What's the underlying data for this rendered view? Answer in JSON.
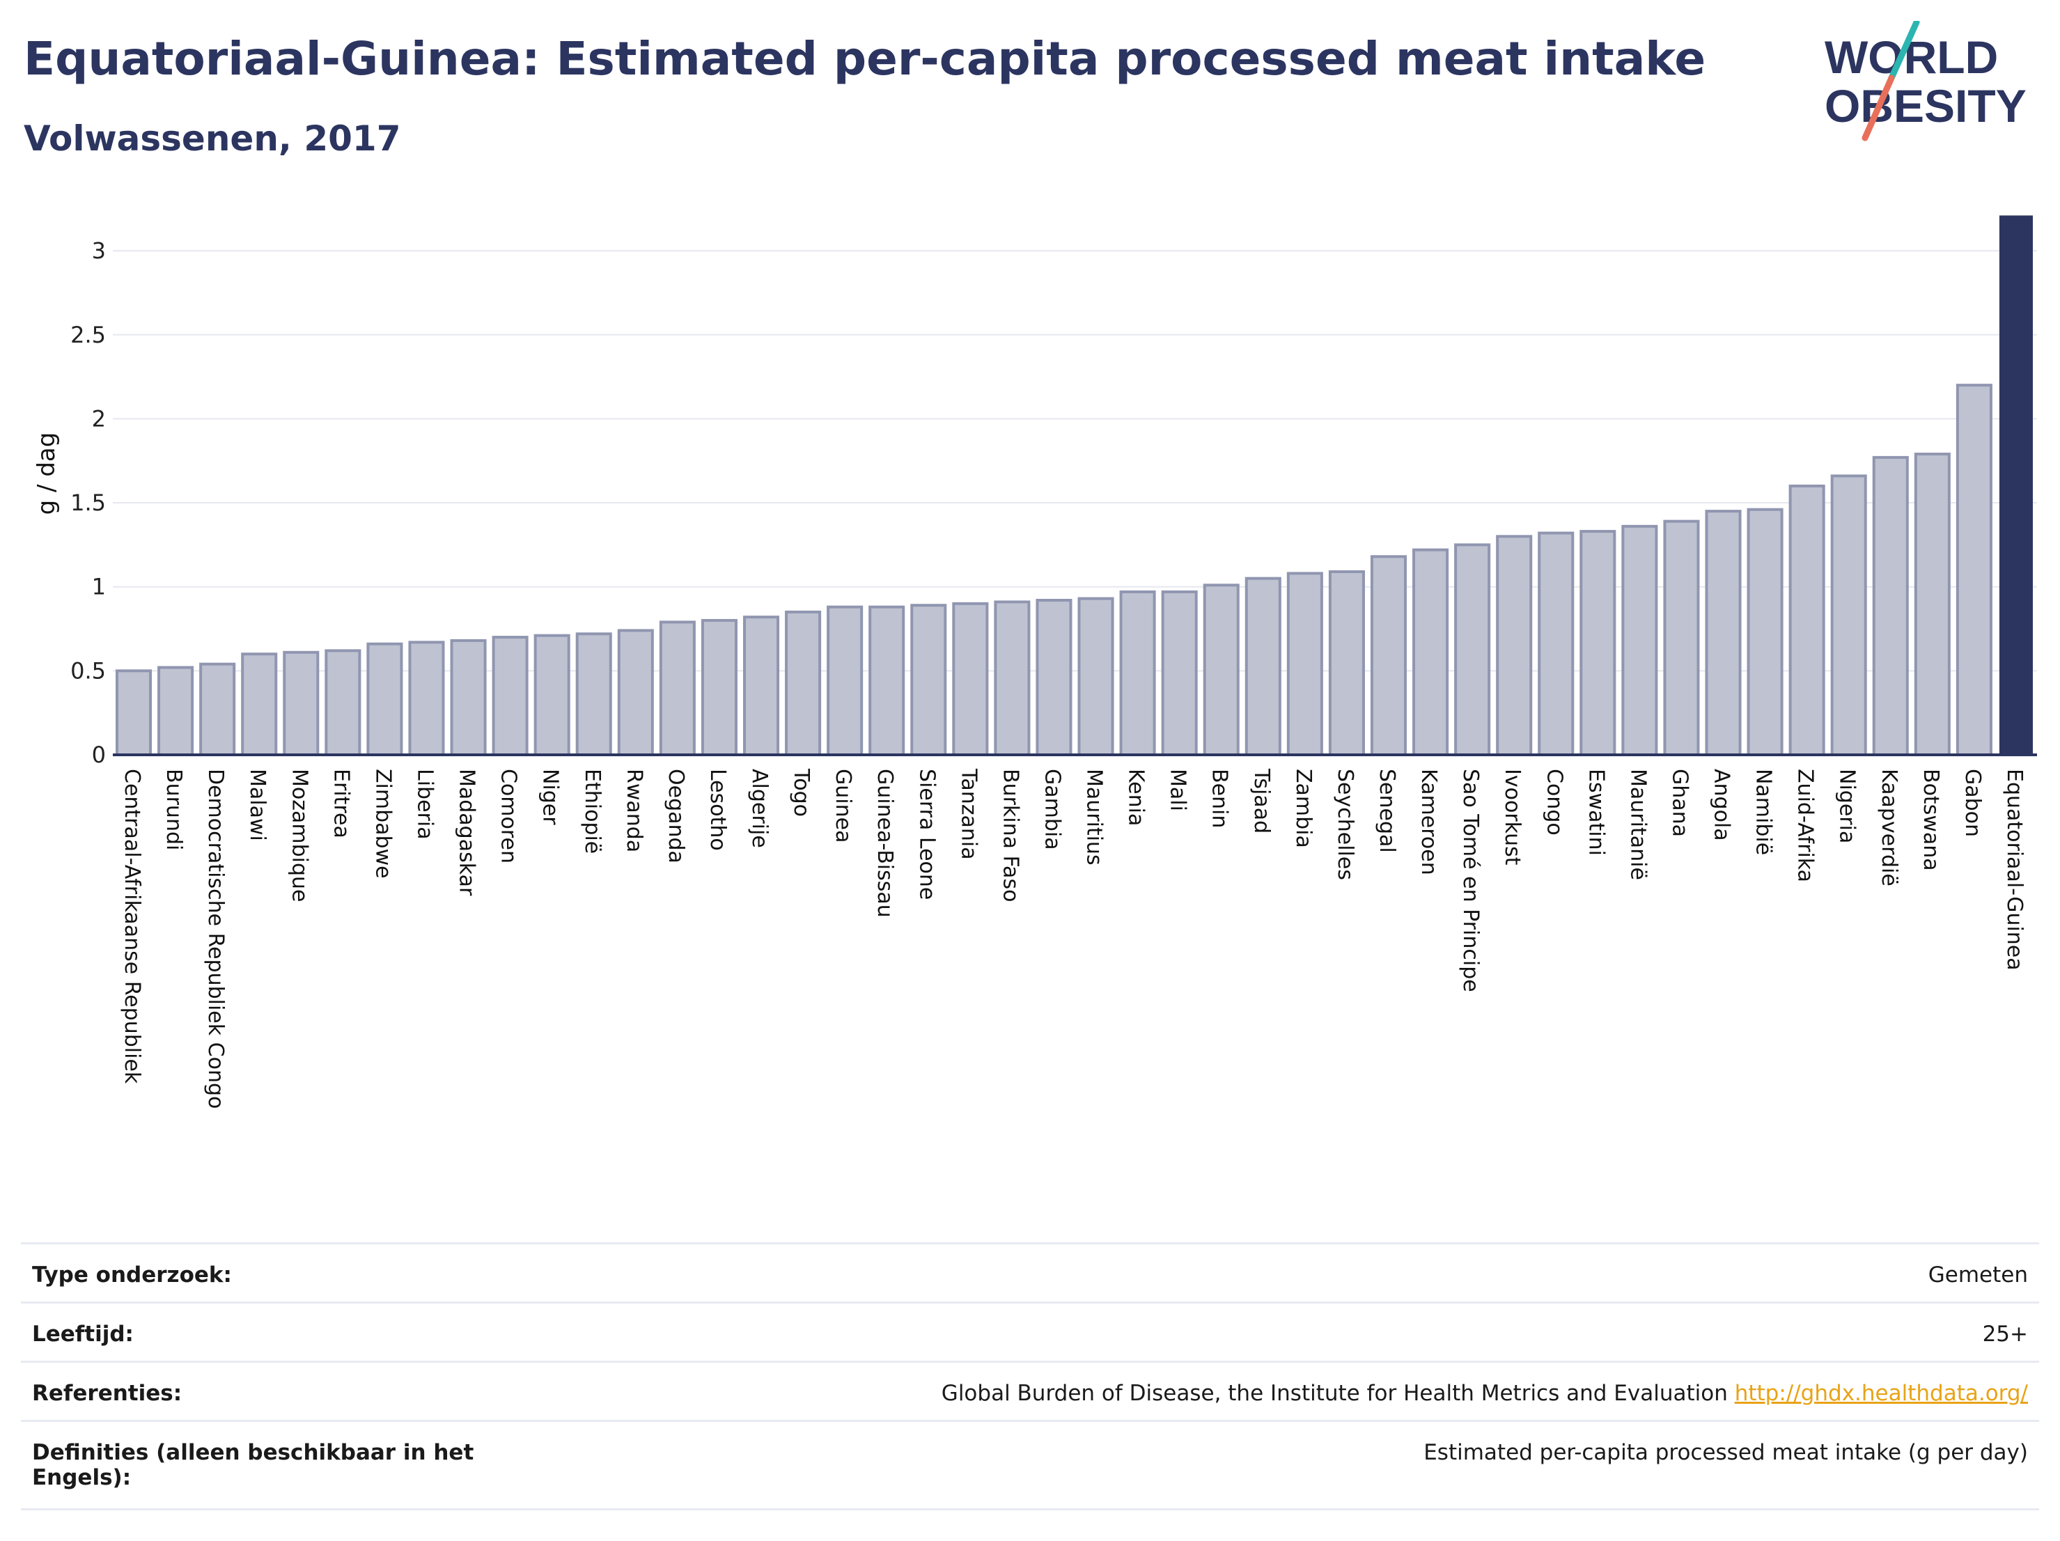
{
  "header": {
    "title": "Equatoriaal-Guinea: Estimated per-capita processed meat intake",
    "subtitle": "Volwassenen, 2017"
  },
  "logo": {
    "line1": "WORLD",
    "line2": "OBESITY",
    "text_color": "#2c3560",
    "slash_colors": [
      "#2bb5b0",
      "#e8705a"
    ]
  },
  "colors": {
    "bar_fill": "#bfc3d1",
    "bar_stroke": "#9096b0",
    "highlight": "#2c3560",
    "grid": "#e6e8ef",
    "text": "#2c3560",
    "link": "#e8a317"
  },
  "chart_data": {
    "type": "bar",
    "title": "",
    "xlabel": "",
    "ylabel": "g / dag",
    "ylim": [
      0,
      3.2
    ],
    "yticks": [
      0,
      0.5,
      1,
      1.5,
      2,
      2.5,
      3
    ],
    "ytick_labels": [
      "0",
      "0.5",
      "1",
      "1.5",
      "2",
      "2.5",
      "3"
    ],
    "grid": true,
    "highlight_category": "Equatoriaal-Guinea",
    "categories": [
      "Centraal-Afrikaanse Republiek",
      "Burundi",
      "Democratische Republiek Congo",
      "Malawi",
      "Mozambique",
      "Eritrea",
      "Zimbabwe",
      "Liberia",
      "Madagaskar",
      "Comoren",
      "Niger",
      "Ethiopië",
      "Rwanda",
      "Oeganda",
      "Lesotho",
      "Algerije",
      "Togo",
      "Guinea",
      "Guinea-Bissau",
      "Sierra Leone",
      "Tanzania",
      "Burkina Faso",
      "Gambia",
      "Mauritius",
      "Kenia",
      "Mali",
      "Benin",
      "Tsjaad",
      "Zambia",
      "Seychelles",
      "Senegal",
      "Kameroen",
      "Sao Tomé en Principe",
      "Ivoorkust",
      "Congo",
      "Eswatini",
      "Mauritanië",
      "Ghana",
      "Angola",
      "Namibië",
      "Zuid-Afrika",
      "Nigeria",
      "Kaapverdië",
      "Botswana",
      "Gabon",
      "Equatoriaal-Guinea"
    ],
    "values": [
      0.5,
      0.52,
      0.54,
      0.6,
      0.61,
      0.62,
      0.66,
      0.67,
      0.68,
      0.7,
      0.71,
      0.72,
      0.74,
      0.79,
      0.8,
      0.82,
      0.85,
      0.88,
      0.88,
      0.89,
      0.9,
      0.91,
      0.92,
      0.93,
      0.97,
      0.97,
      1.01,
      1.05,
      1.08,
      1.09,
      1.18,
      1.22,
      1.25,
      1.3,
      1.32,
      1.33,
      1.36,
      1.39,
      1.45,
      1.46,
      1.6,
      1.66,
      1.77,
      1.79,
      2.2,
      3.21
    ]
  },
  "info": [
    {
      "label": "Type onderzoek:",
      "value": "Gemeten"
    },
    {
      "label": "Leeftijd:",
      "value": "25+"
    },
    {
      "label": "Referenties:",
      "value": "Global Burden of Disease, the Institute for Health Metrics and Evaluation",
      "link": "http://ghdx.healthdata.org/"
    },
    {
      "label": "Definities (alleen beschikbaar in het Engels):",
      "value": "Estimated per-capita processed meat intake (g per day)"
    }
  ]
}
